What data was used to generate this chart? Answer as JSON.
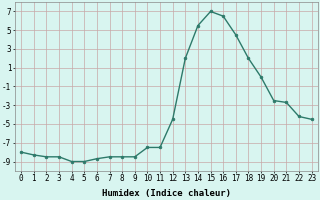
{
  "x": [
    0,
    1,
    2,
    3,
    4,
    5,
    6,
    7,
    8,
    9,
    10,
    11,
    12,
    13,
    14,
    15,
    16,
    17,
    18,
    19,
    20,
    21,
    22,
    23
  ],
  "y": [
    -8.0,
    -8.3,
    -8.5,
    -8.5,
    -9.0,
    -9.0,
    -8.7,
    -8.5,
    -8.5,
    -8.5,
    -7.5,
    -7.5,
    -4.5,
    2.0,
    5.5,
    7.0,
    6.5,
    4.5,
    2.0,
    0.0,
    -2.5,
    -2.7,
    -4.2,
    -4.5
  ],
  "line_color": "#2d7a6a",
  "marker": "o",
  "marker_size": 2,
  "bg_color": "#d8f5f0",
  "grid_color": "#c8a8a8",
  "xlabel": "Humidex (Indice chaleur)",
  "xlim_min": -0.5,
  "xlim_max": 23.5,
  "ylim_min": -10,
  "ylim_max": 8,
  "yticks": [
    -9,
    -7,
    -5,
    -3,
    -1,
    1,
    3,
    5,
    7
  ],
  "xticks": [
    0,
    1,
    2,
    3,
    4,
    5,
    6,
    7,
    8,
    9,
    10,
    11,
    12,
    13,
    14,
    15,
    16,
    17,
    18,
    19,
    20,
    21,
    22,
    23
  ],
  "tick_fontsize": 5.5,
  "label_fontsize": 6.5,
  "linewidth": 1.0
}
